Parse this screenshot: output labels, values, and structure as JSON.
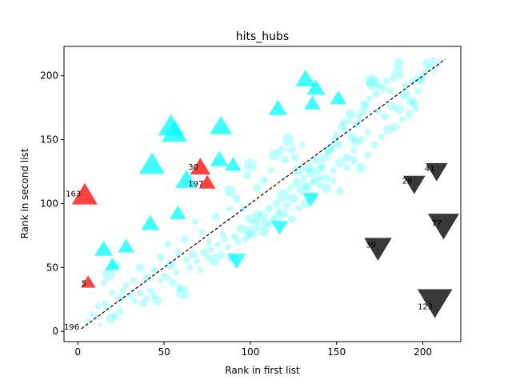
{
  "chart_data": {
    "type": "scatter",
    "title": "hits_hubs",
    "xlabel": "Rank in first list",
    "ylabel": "Rank in second list",
    "xlim": [
      -8,
      222
    ],
    "ylim": [
      -8,
      223
    ],
    "xticks": [
      0,
      50,
      100,
      150,
      200
    ],
    "yticks": [
      0,
      50,
      100,
      150,
      200
    ],
    "diagonal": {
      "from": [
        2,
        2
      ],
      "to": [
        213,
        213
      ],
      "style": "dashed",
      "color": "#000000"
    },
    "colors": {
      "cyan": "#00ffff",
      "red": "#ff0000",
      "black": "#000000"
    },
    "circles": [
      [
        6,
        8,
        3
      ],
      [
        10,
        12,
        3
      ],
      [
        13,
        5,
        3
      ],
      [
        8,
        14,
        3
      ],
      [
        12,
        20,
        4
      ],
      [
        17,
        18,
        4
      ],
      [
        19,
        10,
        6
      ],
      [
        22,
        12,
        5
      ],
      [
        25,
        16,
        4
      ],
      [
        15,
        38,
        4
      ],
      [
        18,
        45,
        8
      ],
      [
        22,
        52,
        6
      ],
      [
        28,
        36,
        4
      ],
      [
        30,
        28,
        4
      ],
      [
        33,
        24,
        4
      ],
      [
        36,
        30,
        4
      ],
      [
        38,
        22,
        5
      ],
      [
        40,
        26,
        4
      ],
      [
        42,
        32,
        4
      ],
      [
        44,
        28,
        4
      ],
      [
        46,
        24,
        6
      ],
      [
        48,
        40,
        4
      ],
      [
        50,
        44,
        3
      ],
      [
        52,
        42,
        4
      ],
      [
        55,
        38,
        5
      ],
      [
        57,
        46,
        4
      ],
      [
        59,
        34,
        5
      ],
      [
        61,
        30,
        8
      ],
      [
        63,
        56,
        4
      ],
      [
        65,
        50,
        4
      ],
      [
        67,
        60,
        5
      ],
      [
        69,
        55,
        4
      ],
      [
        71,
        48,
        4
      ],
      [
        73,
        62,
        5
      ],
      [
        75,
        58,
        4
      ],
      [
        77,
        64,
        4
      ],
      [
        79,
        56,
        7
      ],
      [
        81,
        68,
        4
      ],
      [
        83,
        60,
        5
      ],
      [
        85,
        72,
        4
      ],
      [
        87,
        66,
        4
      ],
      [
        89,
        58,
        6
      ],
      [
        91,
        74,
        5
      ],
      [
        93,
        70,
        4
      ],
      [
        95,
        80,
        6
      ],
      [
        97,
        72,
        4
      ],
      [
        99,
        76,
        5
      ],
      [
        101,
        78,
        8
      ],
      [
        103,
        86,
        5
      ],
      [
        105,
        82,
        4
      ],
      [
        107,
        90,
        7
      ],
      [
        109,
        84,
        5
      ],
      [
        111,
        96,
        5
      ],
      [
        113,
        88,
        4
      ],
      [
        115,
        100,
        5
      ],
      [
        117,
        94,
        4
      ],
      [
        119,
        106,
        8
      ],
      [
        121,
        98,
        5
      ],
      [
        123,
        112,
        4
      ],
      [
        125,
        104,
        6
      ],
      [
        127,
        116,
        6
      ],
      [
        129,
        110,
        5
      ],
      [
        131,
        120,
        4
      ],
      [
        133,
        112,
        5
      ],
      [
        135,
        124,
        6
      ],
      [
        137,
        118,
        4
      ],
      [
        139,
        126,
        5
      ],
      [
        141,
        130,
        4
      ],
      [
        143,
        136,
        6
      ],
      [
        145,
        140,
        4
      ],
      [
        147,
        144,
        5
      ],
      [
        149,
        150,
        4
      ],
      [
        151,
        146,
        5
      ],
      [
        153,
        160,
        5
      ],
      [
        155,
        158,
        4
      ],
      [
        157,
        164,
        4
      ],
      [
        159,
        152,
        6
      ],
      [
        161,
        148,
        5
      ],
      [
        163,
        168,
        4
      ],
      [
        165,
        172,
        5
      ],
      [
        167,
        176,
        4
      ],
      [
        169,
        182,
        4
      ],
      [
        171,
        194,
        8
      ],
      [
        173,
        186,
        5
      ],
      [
        175,
        192,
        4
      ],
      [
        177,
        190,
        5
      ],
      [
        179,
        196,
        4
      ],
      [
        181,
        188,
        4
      ],
      [
        183,
        198,
        5
      ],
      [
        185,
        204,
        6
      ],
      [
        187,
        200,
        4
      ],
      [
        189,
        184,
        5
      ],
      [
        191,
        186,
        4
      ],
      [
        193,
        180,
        6
      ],
      [
        195,
        178,
        5
      ],
      [
        197,
        188,
        4
      ],
      [
        199,
        196,
        5
      ],
      [
        201,
        202,
        4
      ],
      [
        203,
        206,
        3
      ],
      [
        205,
        208,
        3
      ],
      [
        207,
        204,
        3
      ],
      [
        209,
        210,
        3
      ],
      [
        80,
        90,
        5
      ],
      [
        84,
        76,
        4
      ],
      [
        88,
        110,
        7
      ],
      [
        92,
        104,
        5
      ],
      [
        96,
        96,
        4
      ],
      [
        98,
        122,
        5
      ],
      [
        100,
        130,
        8
      ],
      [
        104,
        112,
        5
      ],
      [
        108,
        118,
        5
      ],
      [
        112,
        126,
        4
      ],
      [
        114,
        138,
        7
      ],
      [
        118,
        142,
        5
      ],
      [
        122,
        150,
        8
      ],
      [
        126,
        136,
        5
      ],
      [
        130,
        146,
        4
      ],
      [
        134,
        128,
        6
      ],
      [
        138,
        134,
        5
      ],
      [
        142,
        128,
        4
      ],
      [
        146,
        142,
        5
      ],
      [
        150,
        154,
        4
      ],
      [
        154,
        164,
        4
      ],
      [
        158,
        170,
        6
      ],
      [
        162,
        162,
        5
      ],
      [
        166,
        178,
        5
      ],
      [
        170,
        196,
        8
      ],
      [
        174,
        172,
        4
      ],
      [
        178,
        168,
        5
      ],
      [
        182,
        176,
        5
      ],
      [
        186,
        174,
        6
      ],
      [
        190,
        192,
        5
      ],
      [
        194,
        196,
        4
      ],
      [
        198,
        198,
        6
      ],
      [
        202,
        210,
        5
      ],
      [
        186,
        210,
        6
      ],
      [
        206,
        212,
        4
      ],
      [
        88,
        96,
        4
      ],
      [
        100,
        88,
        6
      ],
      [
        104,
        92,
        5
      ],
      [
        108,
        78,
        6
      ],
      [
        112,
        84,
        5
      ],
      [
        116,
        90,
        6
      ],
      [
        120,
        92,
        4
      ],
      [
        124,
        88,
        5
      ],
      [
        128,
        96,
        4
      ],
      [
        132,
        100,
        6
      ],
      [
        136,
        106,
        5
      ],
      [
        140,
        114,
        4
      ],
      [
        144,
        120,
        5
      ],
      [
        148,
        126,
        4
      ],
      [
        152,
        132,
        6
      ],
      [
        156,
        136,
        5
      ],
      [
        160,
        142,
        4
      ],
      [
        164,
        150,
        5
      ],
      [
        168,
        156,
        4
      ],
      [
        72,
        78,
        4
      ],
      [
        76,
        70,
        4
      ],
      [
        68,
        86,
        4
      ],
      [
        62,
        72,
        5
      ],
      [
        58,
        62,
        4
      ],
      [
        54,
        52,
        6
      ],
      [
        52,
        68,
        4
      ],
      [
        48,
        58,
        5
      ],
      [
        44,
        48,
        4
      ],
      [
        40,
        42,
        5
      ],
      [
        36,
        50,
        5
      ],
      [
        32,
        40,
        4
      ],
      [
        26,
        32,
        4
      ],
      [
        24,
        26,
        5
      ],
      [
        20,
        30,
        4
      ],
      [
        16,
        22,
        4
      ],
      [
        120,
        134,
        5
      ],
      [
        124,
        142,
        5
      ],
      [
        128,
        126,
        7
      ],
      [
        132,
        114,
        5
      ],
      [
        136,
        116,
        4
      ],
      [
        140,
        120,
        5
      ],
      [
        144,
        112,
        6
      ],
      [
        148,
        118,
        4
      ],
      [
        152,
        110,
        5
      ],
      [
        156,
        128,
        4
      ],
      [
        160,
        134,
        5
      ],
      [
        164,
        128,
        6
      ],
      [
        168,
        138,
        4
      ],
      [
        172,
        146,
        5
      ],
      [
        176,
        152,
        4
      ],
      [
        180,
        158,
        6
      ],
      [
        184,
        160,
        5
      ],
      [
        188,
        166,
        4
      ],
      [
        192,
        170,
        5
      ],
      [
        196,
        174,
        4
      ]
    ],
    "cyan_up": [
      [
        54,
        160,
        14
      ],
      [
        56,
        155,
        14
      ],
      [
        83,
        160,
        12
      ],
      [
        132,
        197,
        11
      ],
      [
        138,
        190,
        10
      ],
      [
        116,
        174,
        10
      ],
      [
        136,
        178,
        9
      ],
      [
        151,
        182,
        9
      ],
      [
        43,
        130,
        14
      ],
      [
        63,
        118,
        12
      ],
      [
        82,
        134,
        10
      ],
      [
        90,
        130,
        9
      ],
      [
        42,
        84,
        10
      ],
      [
        58,
        92,
        9
      ],
      [
        15,
        64,
        10
      ],
      [
        28,
        66,
        9
      ],
      [
        20,
        52,
        8
      ]
    ],
    "cyan_down": [
      [
        92,
        56,
        10
      ],
      [
        117,
        82,
        9
      ],
      [
        135,
        104,
        9
      ]
    ],
    "red_up": [
      [
        4,
        106,
        14,
        "163"
      ],
      [
        71,
        128,
        11,
        "30"
      ],
      [
        75,
        116,
        9,
        "197"
      ],
      [
        6,
        38,
        8,
        "5"
      ]
    ],
    "black_down": [
      [
        174,
        66,
        15,
        "39"
      ],
      [
        195,
        116,
        12,
        "28"
      ],
      [
        208,
        126,
        12,
        "41"
      ],
      [
        212,
        84,
        17,
        "77"
      ],
      [
        207,
        24,
        19,
        "123"
      ]
    ],
    "annotations": [
      {
        "text": "163",
        "x": -7,
        "y": 108
      },
      {
        "text": "30",
        "x": 64,
        "y": 129
      },
      {
        "text": "197",
        "x": 64,
        "y": 116
      },
      {
        "text": "5",
        "x": 2,
        "y": 38
      },
      {
        "text": "39",
        "x": 167,
        "y": 68
      },
      {
        "text": "28",
        "x": 188,
        "y": 118
      },
      {
        "text": "41",
        "x": 201,
        "y": 128
      },
      {
        "text": "77",
        "x": 205,
        "y": 85
      },
      {
        "text": "123",
        "x": 197,
        "y": 20
      },
      {
        "text": "196",
        "x": -8,
        "y": 4
      }
    ]
  }
}
